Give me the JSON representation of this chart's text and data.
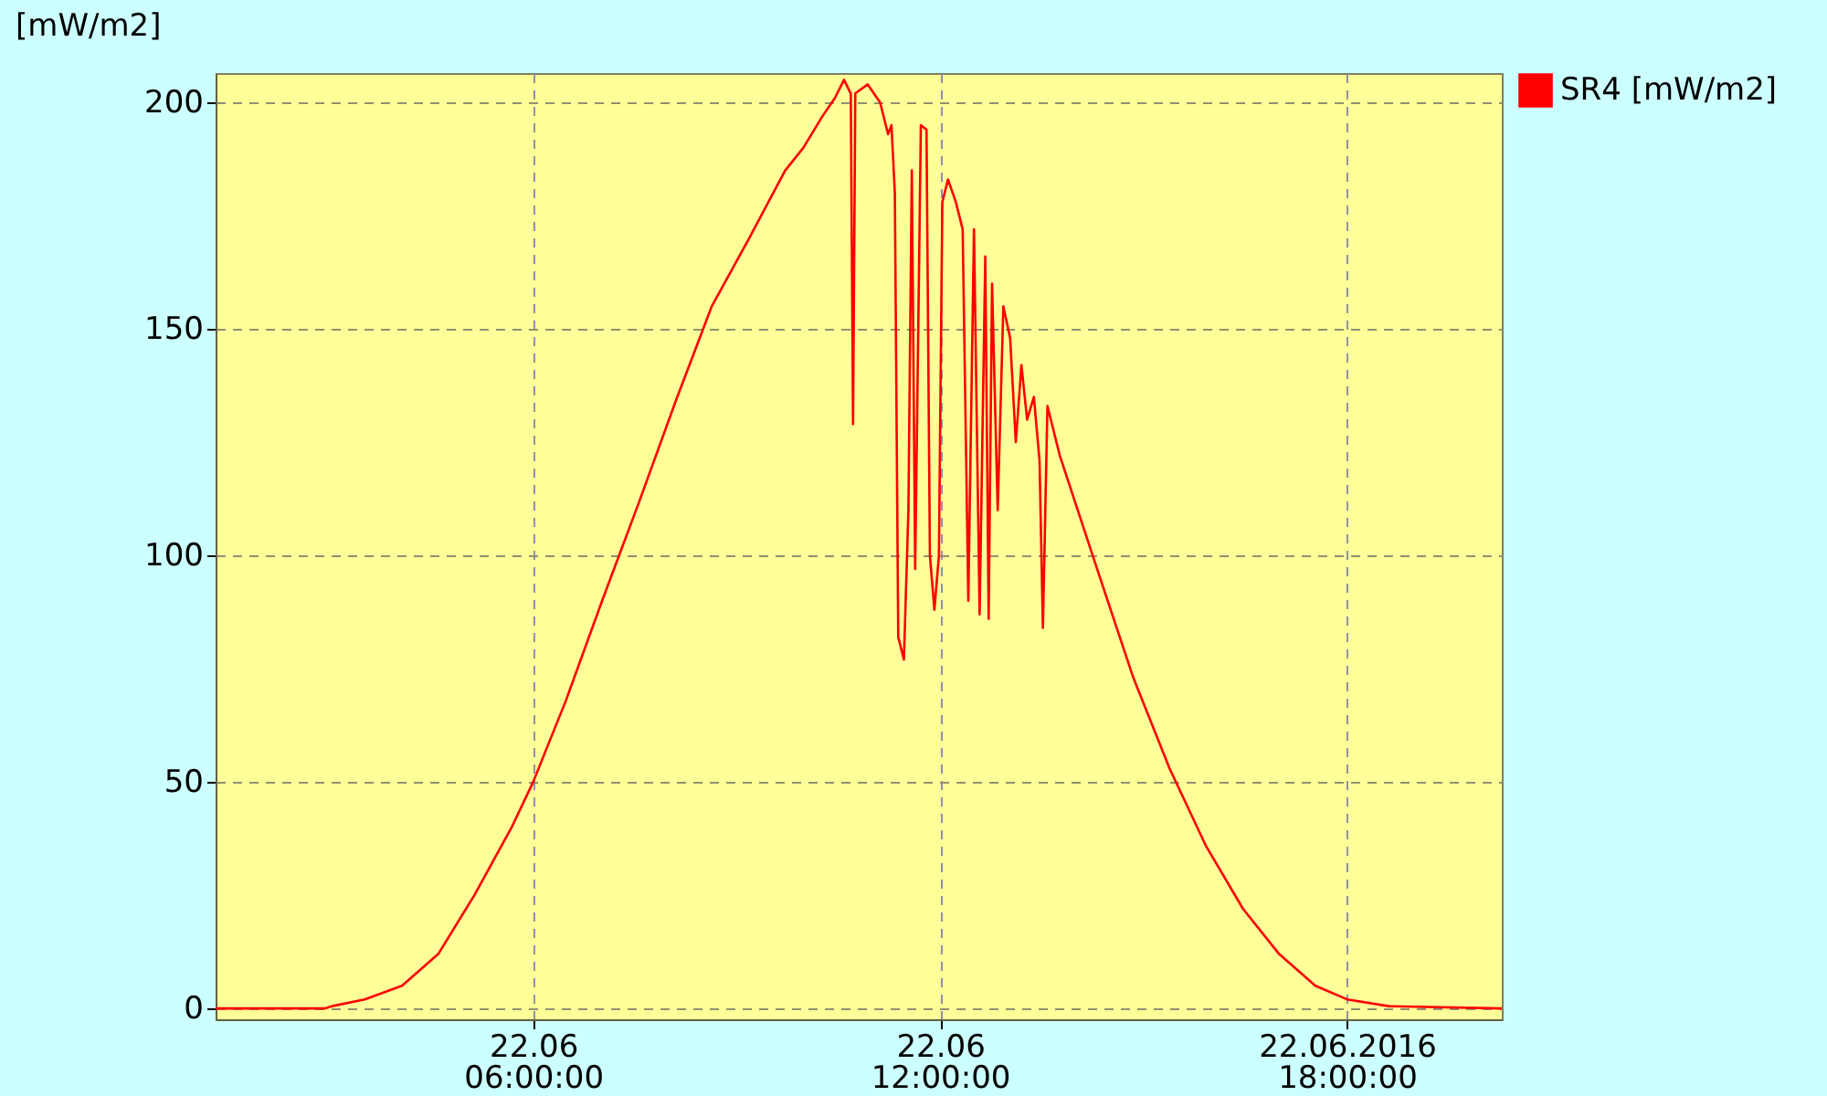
{
  "chart_data": {
    "type": "line",
    "ylabel": "[mW/m2]",
    "xlim": [
      "2016-06-22T01:19",
      "2016-06-22T20:17"
    ],
    "xticks": [
      {
        "value": "2016-06-22T06:00",
        "label": "22.06\n06:00:00"
      },
      {
        "value": "2016-06-22T12:00",
        "label": "22.06\n12:00:00"
      },
      {
        "value": "2016-06-22T18:00",
        "label": "22.06.2016\n18:00:00"
      }
    ],
    "ylim": [
      -2.4,
      206.5
    ],
    "yticks": [
      0,
      50,
      100,
      150,
      200
    ],
    "grid": true,
    "legend": "top right",
    "x": [
      "2016-06-22T01:19",
      "2016-06-22T02:56",
      "2016-06-22T03:02",
      "2016-06-22T03:31",
      "2016-06-22T04:04",
      "2016-06-22T04:36",
      "2016-06-22T05:08",
      "2016-06-22T05:41",
      "2016-06-22T06:00",
      "2016-06-22T06:29",
      "2016-06-22T07:01",
      "2016-06-22T07:34",
      "2016-06-22T08:06",
      "2016-06-22T08:38",
      "2016-06-22T09:11",
      "2016-06-22T09:43",
      "2016-06-22T09:59",
      "2016-06-22T10:16",
      "2016-06-22T10:27",
      "2016-06-22T10:35",
      "2016-06-22T10:41",
      "2016-06-22T10:43",
      "2016-06-22T10:45",
      "2016-06-22T10:56",
      "2016-06-22T11:07",
      "2016-06-22T11:14",
      "2016-06-22T11:17",
      "2016-06-22T11:20",
      "2016-06-22T11:23",
      "2016-06-22T11:28",
      "2016-06-22T11:32",
      "2016-06-22T11:35",
      "2016-06-22T11:38",
      "2016-06-22T11:43",
      "2016-06-22T11:48",
      "2016-06-22T11:51",
      "2016-06-22T11:55",
      "2016-06-22T11:59",
      "2016-06-22T12:02",
      "2016-06-22T12:07",
      "2016-06-22T12:14",
      "2016-06-22T12:20",
      "2016-06-22T12:25",
      "2016-06-22T12:30",
      "2016-06-22T12:35",
      "2016-06-22T12:40",
      "2016-06-22T12:43",
      "2016-06-22T12:46",
      "2016-06-22T12:51",
      "2016-06-22T12:56",
      "2016-06-22T13:02",
      "2016-06-22T13:07",
      "2016-06-22T13:12",
      "2016-06-22T13:17",
      "2016-06-22T13:23",
      "2016-06-22T13:28",
      "2016-06-22T13:31",
      "2016-06-22T13:35",
      "2016-06-22T13:46",
      "2016-06-22T14:19",
      "2016-06-22T14:51",
      "2016-06-22T15:23",
      "2016-06-22T15:55",
      "2016-06-22T16:28",
      "2016-06-22T17:00",
      "2016-06-22T17:32",
      "2016-06-22T18:00",
      "2016-06-22T18:37",
      "2016-06-22T20:17"
    ],
    "series": [
      {
        "name": "SR4 [mW/m2]",
        "color": "#ff0000",
        "values": [
          0,
          0,
          0.5,
          2,
          5,
          12,
          25,
          40,
          50,
          68,
          90,
          112,
          134,
          155,
          170,
          185,
          190,
          197,
          201,
          205,
          202,
          129,
          202,
          204,
          200,
          193,
          195,
          180,
          82,
          77,
          110,
          185,
          97,
          195,
          194,
          100,
          88,
          100,
          178,
          183,
          178,
          172,
          90,
          172,
          87,
          166,
          86,
          160,
          110,
          155,
          148,
          125,
          142,
          130,
          135,
          121,
          84,
          133,
          122,
          97,
          73,
          53,
          36,
          22,
          12,
          5,
          2,
          0.5,
          0
        ]
      }
    ]
  }
}
